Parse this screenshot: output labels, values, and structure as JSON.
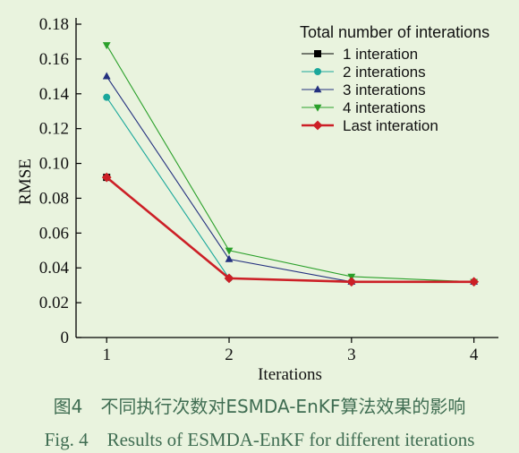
{
  "chart_data": {
    "type": "line",
    "xlabel": "Iterations",
    "ylabel": "RMSE",
    "x": [
      1,
      2,
      3,
      4
    ],
    "xlim": [
      0.75,
      4.2
    ],
    "ylim": [
      0,
      0.18
    ],
    "yticks": [
      "0",
      "0.02",
      "0.04",
      "0.06",
      "0.08",
      "0.10",
      "0.12",
      "0.14",
      "0.16",
      "0.18"
    ],
    "xticks": [
      "1",
      "2",
      "3",
      "4"
    ],
    "grid": false,
    "legend": {
      "title": "Total number of interations",
      "placement": "top-right"
    },
    "series": [
      {
        "name": "1 interation",
        "values": [
          0.092,
          null,
          null,
          null
        ],
        "color": "#000000",
        "marker": "square",
        "thick": false
      },
      {
        "name": "2 interations",
        "values": [
          0.138,
          0.034,
          0.032,
          0.032
        ],
        "color": "#1aa79b",
        "marker": "circle",
        "thick": false
      },
      {
        "name": "3 interations",
        "values": [
          0.15,
          0.045,
          0.032,
          0.032
        ],
        "color": "#23307f",
        "marker": "triangle-up",
        "thick": false
      },
      {
        "name": "4 interations",
        "values": [
          0.168,
          0.05,
          0.035,
          0.032
        ],
        "color": "#2aa02a",
        "marker": "triangle-down",
        "thick": false
      },
      {
        "name": "Last interation",
        "values": [
          0.092,
          0.034,
          0.032,
          0.032
        ],
        "color": "#cc1f26",
        "marker": "diamond",
        "thick": true
      }
    ]
  },
  "caption": {
    "chinese": "图4　不同执行次数对ESMDA-EnKF算法效果的影响",
    "english": "Fig.  4　Results of ESMDA-EnKF for different iterations"
  }
}
